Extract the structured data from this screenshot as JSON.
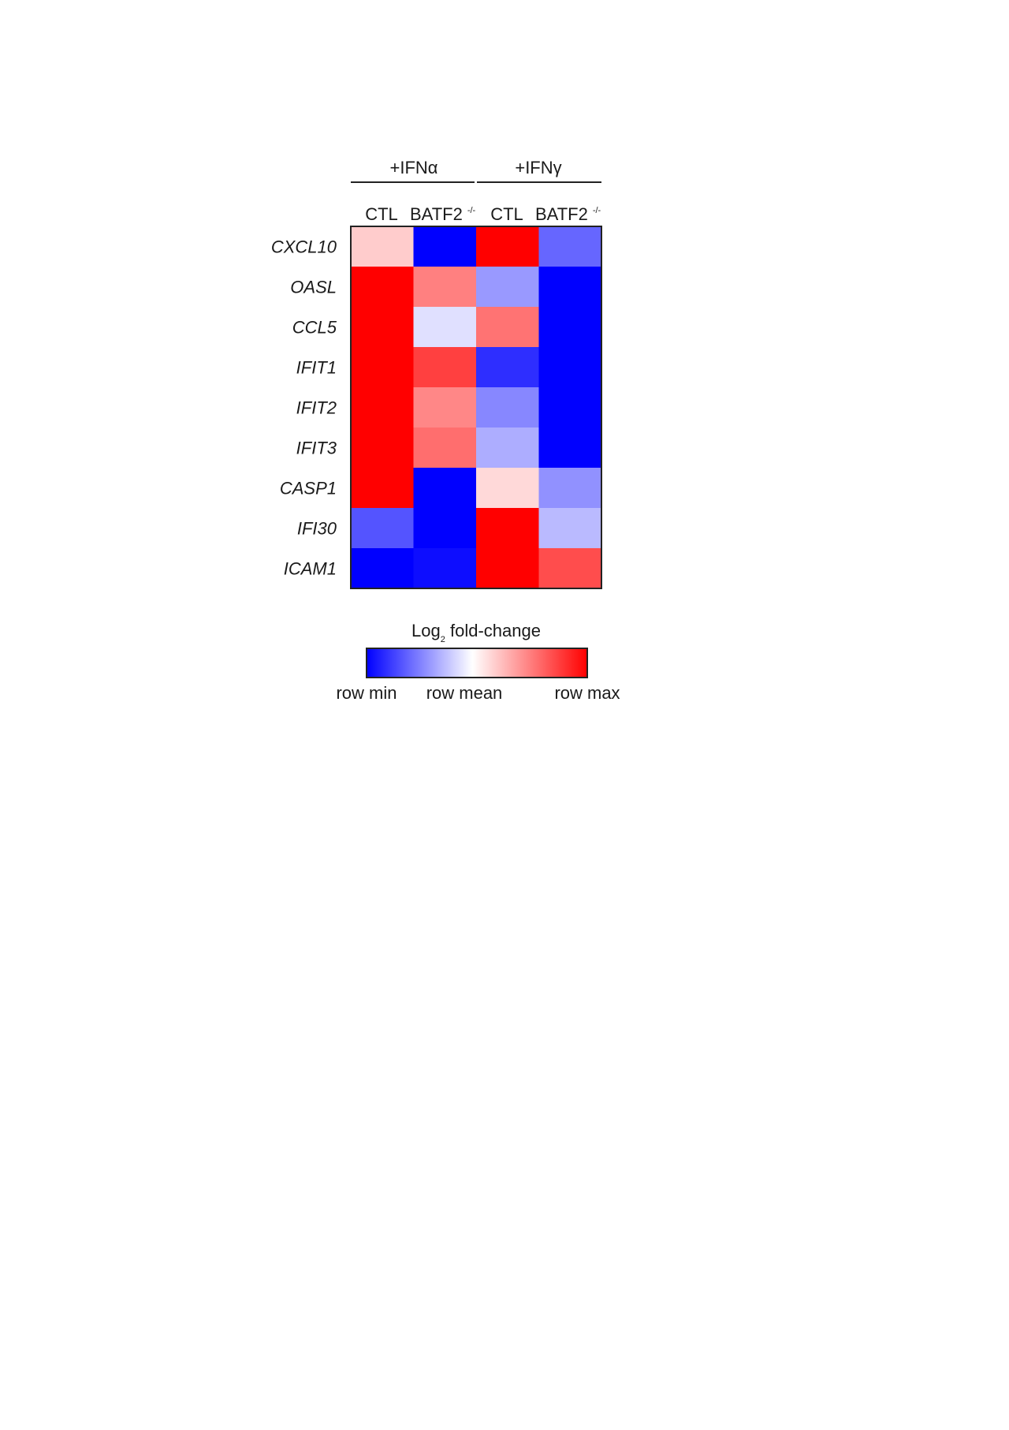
{
  "chart_data": {
    "type": "heatmap",
    "groups": [
      "+IFNα",
      "+IFNγ"
    ],
    "columns": [
      {
        "group": "+IFNα",
        "label": "CTL",
        "superscript": ""
      },
      {
        "group": "+IFNα",
        "label": "BATF2",
        "superscript": "-/-"
      },
      {
        "group": "+IFNγ",
        "label": "CTL",
        "superscript": ""
      },
      {
        "group": "+IFNγ",
        "label": "BATF2",
        "superscript": "-/-"
      }
    ],
    "rows": [
      "CXCL10",
      "OASL",
      "CCL5",
      "IFIT1",
      "IFIT2",
      "IFIT3",
      "CASP1",
      "IFI30",
      "ICAM1"
    ],
    "values": [
      [
        0.2,
        -1.0,
        1.0,
        -0.6
      ],
      [
        1.0,
        0.5,
        -0.4,
        -1.0
      ],
      [
        1.0,
        -0.12,
        0.55,
        -1.0
      ],
      [
        1.0,
        0.75,
        -0.82,
        -1.0
      ],
      [
        1.0,
        0.47,
        -0.47,
        -1.0
      ],
      [
        1.0,
        0.57,
        -0.32,
        -1.0
      ],
      [
        1.0,
        -1.0,
        0.15,
        -0.43
      ],
      [
        -0.67,
        -1.0,
        1.0,
        -0.27
      ],
      [
        -1.0,
        -0.95,
        1.0,
        0.7
      ]
    ],
    "value_scale": {
      "min": -1,
      "mean": 0,
      "max": 1
    },
    "colorscale": {
      "min_color": "#0000ff",
      "mid_color": "#ffffff",
      "max_color": "#ff0000"
    },
    "legend": {
      "title": "Log",
      "title_subscript": "2",
      "title_rest": " fold-change",
      "tick_min": "row min",
      "tick_mean": "row mean",
      "tick_max": "row max",
      "placement": "bottom"
    }
  }
}
